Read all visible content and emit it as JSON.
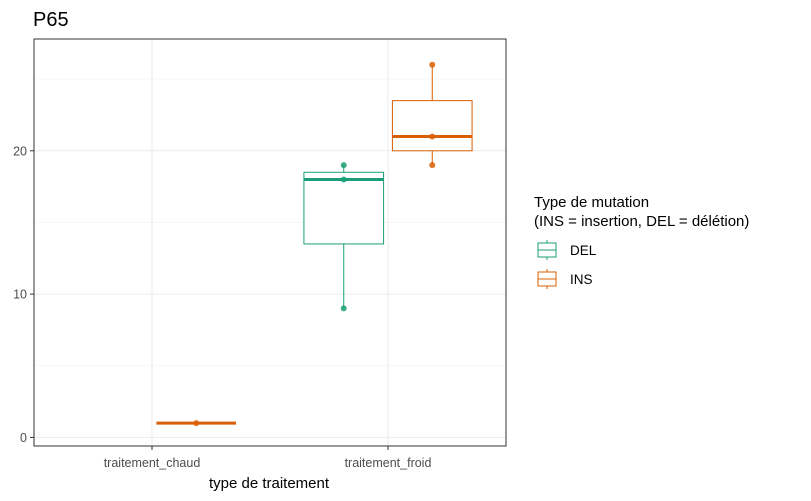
{
  "chart_data": {
    "type": "boxplot",
    "title": "P65",
    "xlabel": "type de traitement",
    "ylabel": "",
    "categories": [
      "traitement_chaud",
      "traitement_froid"
    ],
    "ylim": [
      -0.6,
      27.8
    ],
    "yticks": [
      0,
      10,
      20
    ],
    "grid": true,
    "legend": {
      "title_lines": [
        "Type de mutation",
        "(INS = insertion, DEL = délétion)"
      ],
      "position": "right",
      "entries": [
        {
          "name": "DEL",
          "color": "#1b9e77"
        },
        {
          "name": "INS",
          "color": "#d95f02"
        }
      ]
    },
    "series": [
      {
        "name": "DEL",
        "color": "#1b9e77",
        "boxes": [
          {
            "category": "traitement_froid",
            "min": 9,
            "q1": 13.5,
            "median": 18,
            "q3": 18.5,
            "max": 19,
            "points": [
              9,
              18,
              19
            ]
          }
        ]
      },
      {
        "name": "INS",
        "color": "#d95f02",
        "boxes": [
          {
            "category": "traitement_chaud",
            "min": 1,
            "q1": 1,
            "median": 1,
            "q3": 1,
            "max": 1,
            "points": [
              1
            ]
          },
          {
            "category": "traitement_froid",
            "min": 19,
            "q1": 20,
            "median": 21,
            "q3": 23.5,
            "max": 26,
            "points": [
              19,
              21,
              26
            ]
          }
        ]
      }
    ]
  }
}
